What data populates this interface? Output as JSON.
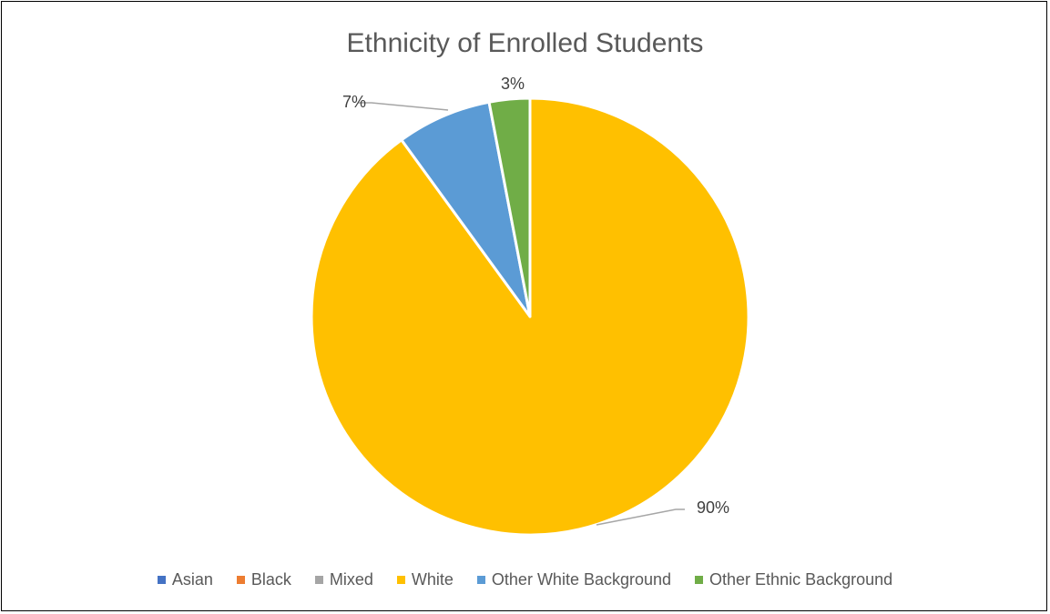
{
  "chart_data": {
    "type": "pie",
    "title": "Ethnicity of Enrolled Students",
    "categories": [
      "Asian",
      "Black",
      "Mixed",
      "White",
      "Other White Background",
      "Other Ethnic Background"
    ],
    "values": [
      0,
      0,
      0,
      90,
      7,
      3
    ],
    "data_labels": [
      "",
      "",
      "",
      "90%",
      "7%",
      "3%"
    ],
    "colors": [
      "#4472C4",
      "#ED7D31",
      "#A5A5A5",
      "#FFC000",
      "#5B9BD5",
      "#70AD47"
    ],
    "start_angle_deg": 0,
    "direction": "clockwise",
    "legend_position": "bottom"
  }
}
